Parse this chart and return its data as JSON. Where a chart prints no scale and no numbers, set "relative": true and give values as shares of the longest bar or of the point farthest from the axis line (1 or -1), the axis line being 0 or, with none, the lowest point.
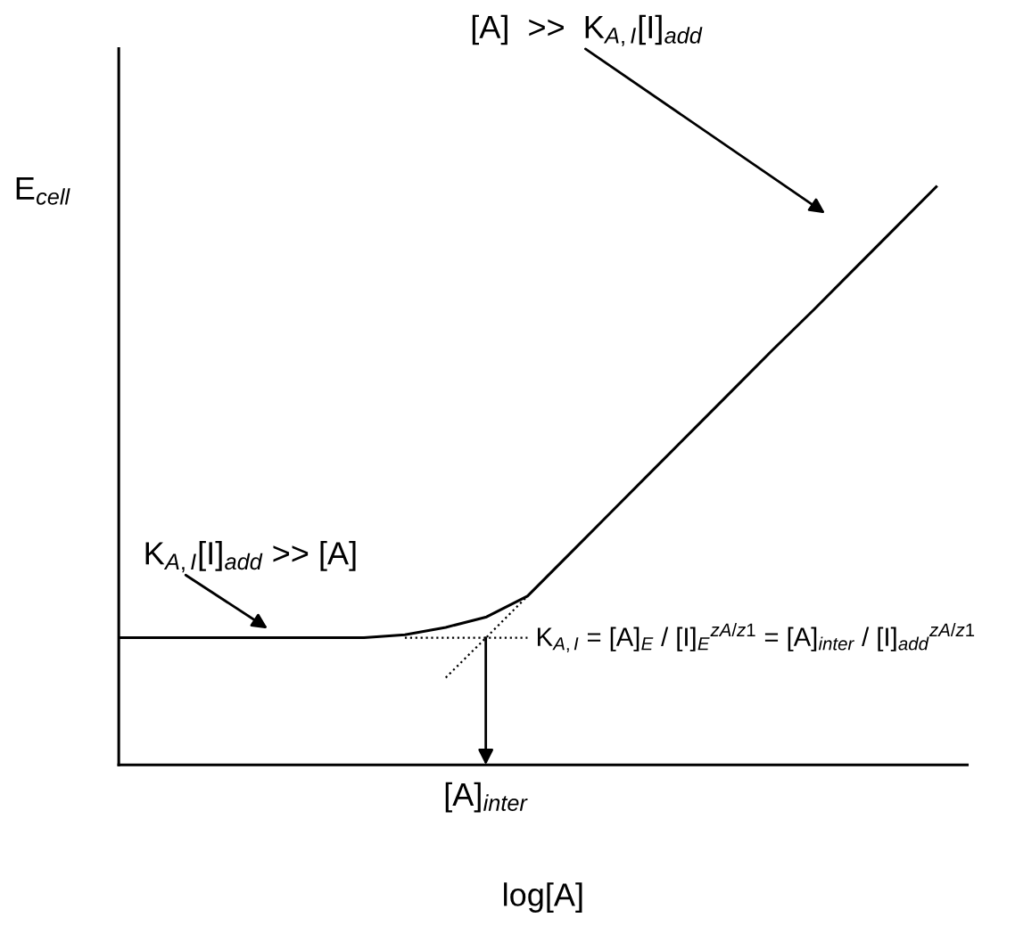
{
  "chart_data": {
    "type": "line",
    "relative": true,
    "ylabel": "E$_{cell}$",
    "xlabel": "log[A]",
    "categories": [
      null,
      null,
      null,
      null,
      null,
      null,
      null,
      null,
      null,
      null,
      null,
      null,
      null,
      null,
      null,
      null,
      null,
      null,
      null,
      null,
      null
    ],
    "tick_labels": false,
    "series": [
      {
        "color": "#000000",
        "line_style": "solid",
        "values": [
          0.22,
          0.22,
          0.22,
          0.22,
          0.22,
          0.22,
          0.22,
          0.225,
          0.238,
          0.256,
          0.292,
          0.363,
          0.434,
          0.505,
          0.576,
          0.647,
          0.718,
          0.787,
          0.858,
          0.929,
          1.0
        ]
      },
      {
        "color": "#000000",
        "line_style": "dotted",
        "values": [
          null,
          null,
          null,
          null,
          null,
          null,
          null,
          0.22,
          0.22,
          0.22,
          0.22,
          null,
          null,
          null,
          null,
          null,
          null,
          null,
          null,
          null,
          null
        ]
      },
      {
        "color": "#000000",
        "line_style": "dotted",
        "values": [
          null,
          null,
          null,
          null,
          null,
          null,
          null,
          null,
          0.151,
          0.221,
          0.292,
          null,
          null,
          null,
          null,
          null,
          null,
          null,
          null,
          null,
          null
        ]
      }
    ],
    "annotations": [
      "[A]  >>  K$_{A,I}$[I]$_{add}$",
      "K$_{A,I}$[I]$_{add}$ >> [A]",
      "K$_{A,I}$ = [A]$_{E}$ / [I]$_{E}$$^{zA/z1}$ = [A]$_{inter}$ / [I]$_{add}$$^{zA/z1}$",
      "[A]$_{inter}$"
    ]
  }
}
